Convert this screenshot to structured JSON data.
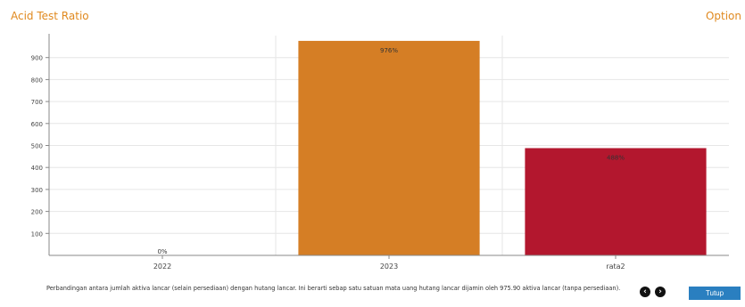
{
  "panel": {
    "title": "Acid Test Ratio",
    "option_label": "Option",
    "caption": "Perbandingan antara jumlah aktiva lancar (selain persediaan) dengan hutang lancar. Ini berarti sebap satu satuan mata uang hutang lancar dijamin oleh 975.90 aktiva lancar (tanpa persediaan).",
    "prev_icon": "chevron-left-circle-icon",
    "next_icon": "chevron-right-circle-icon",
    "close_label": "Tutup"
  },
  "chart_data": {
    "type": "bar",
    "categories": [
      "2022",
      "2023",
      "rata2"
    ],
    "values": [
      0,
      976,
      488
    ],
    "data_labels": [
      "0%",
      "976%",
      "488%"
    ],
    "colors": [
      "#d57e25",
      "#d57e25",
      "#b3172e"
    ],
    "yticks": [
      100,
      200,
      300,
      400,
      500,
      600,
      700,
      800,
      900
    ],
    "ylim": [
      0,
      1000
    ],
    "grid": true
  }
}
